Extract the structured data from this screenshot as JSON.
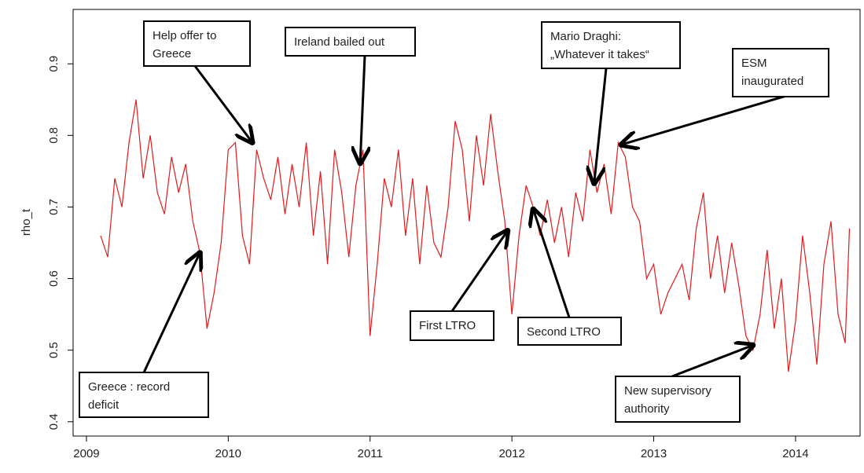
{
  "chart_data": {
    "type": "line",
    "y_label": "rho_t",
    "xlim": [
      2008.906,
      2014.455
    ],
    "xticks": [
      2009,
      2010,
      2011,
      2012,
      2013,
      2014
    ],
    "ylim": [
      0.38,
      0.976
    ],
    "yticks": [
      0.4,
      0.5,
      0.6,
      0.7,
      0.8,
      0.9
    ],
    "series": [
      {
        "color": "#e31a1c",
        "x": [
          2009.1,
          2009.15,
          2009.2,
          2009.25,
          2009.3,
          2009.35,
          2009.4,
          2009.45,
          2009.5,
          2009.55,
          2009.6,
          2009.65,
          2009.7,
          2009.75,
          2009.8,
          2009.85,
          2009.9,
          2009.95,
          2010.0,
          2010.05,
          2010.1,
          2010.15,
          2010.2,
          2010.25,
          2010.3,
          2010.35,
          2010.4,
          2010.45,
          2010.5,
          2010.55,
          2010.6,
          2010.65,
          2010.7,
          2010.75,
          2010.8,
          2010.85,
          2010.9,
          2010.95,
          2011.0,
          2011.05,
          2011.1,
          2011.15,
          2011.2,
          2011.25,
          2011.3,
          2011.35,
          2011.4,
          2011.45,
          2011.5,
          2011.55,
          2011.6,
          2011.65,
          2011.7,
          2011.75,
          2011.8,
          2011.85,
          2011.9,
          2011.95,
          2012.0,
          2012.05,
          2012.1,
          2012.15,
          2012.2,
          2012.25,
          2012.3,
          2012.35,
          2012.4,
          2012.45,
          2012.5,
          2012.55,
          2012.6,
          2012.65,
          2012.7,
          2012.75,
          2012.8,
          2012.85,
          2012.9,
          2012.95,
          2013.0,
          2013.05,
          2013.1,
          2013.15,
          2013.2,
          2013.25,
          2013.3,
          2013.35,
          2013.4,
          2013.45,
          2013.5,
          2013.55,
          2013.6,
          2013.65,
          2013.7,
          2013.75,
          2013.8,
          2013.85,
          2013.9,
          2013.95,
          2014.0,
          2014.05,
          2014.1,
          2014.15,
          2014.2,
          2014.25,
          2014.3,
          2014.35,
          2014.38
        ],
        "values": [
          0.66,
          0.63,
          0.74,
          0.7,
          0.79,
          0.85,
          0.74,
          0.8,
          0.72,
          0.69,
          0.77,
          0.72,
          0.76,
          0.68,
          0.636,
          0.53,
          0.58,
          0.65,
          0.78,
          0.79,
          0.66,
          0.62,
          0.78,
          0.74,
          0.71,
          0.77,
          0.69,
          0.76,
          0.7,
          0.79,
          0.66,
          0.75,
          0.62,
          0.78,
          0.72,
          0.63,
          0.73,
          0.78,
          0.52,
          0.62,
          0.74,
          0.7,
          0.78,
          0.66,
          0.74,
          0.62,
          0.73,
          0.65,
          0.63,
          0.7,
          0.82,
          0.78,
          0.68,
          0.8,
          0.73,
          0.83,
          0.75,
          0.68,
          0.55,
          0.66,
          0.73,
          0.7,
          0.66,
          0.71,
          0.65,
          0.7,
          0.63,
          0.72,
          0.68,
          0.78,
          0.72,
          0.76,
          0.69,
          0.79,
          0.77,
          0.7,
          0.68,
          0.6,
          0.62,
          0.55,
          0.58,
          0.6,
          0.62,
          0.57,
          0.67,
          0.72,
          0.6,
          0.66,
          0.58,
          0.65,
          0.59,
          0.52,
          0.5,
          0.55,
          0.64,
          0.53,
          0.6,
          0.47,
          0.54,
          0.66,
          0.58,
          0.48,
          0.62,
          0.68,
          0.55,
          0.51,
          0.67
        ]
      }
    ],
    "annotations": [
      {
        "text": [
          "Greece : record",
          "deficit"
        ],
        "x": 2009.8,
        "y": 0.636
      },
      {
        "text": [
          "Help offer to",
          "Greece"
        ],
        "x": 2010.17,
        "y": 0.79
      },
      {
        "text": [
          "Ireland bailed out"
        ],
        "x": 2010.93,
        "y": 0.761
      },
      {
        "text": [
          "First LTRO"
        ],
        "x": 2011.97,
        "y": 0.667
      },
      {
        "text": [
          "Second LTRO"
        ],
        "x": 2012.15,
        "y": 0.697
      },
      {
        "text": [
          "Mario Draghi:",
          "„Whatever it takes“"
        ],
        "x": 2012.58,
        "y": 0.733
      },
      {
        "text": [
          "ESM",
          "inaugurated"
        ],
        "x": 2012.77,
        "y": 0.787
      },
      {
        "text": [
          "New supervisory",
          "authority"
        ],
        "x": 2013.7,
        "y": 0.507
      }
    ]
  }
}
